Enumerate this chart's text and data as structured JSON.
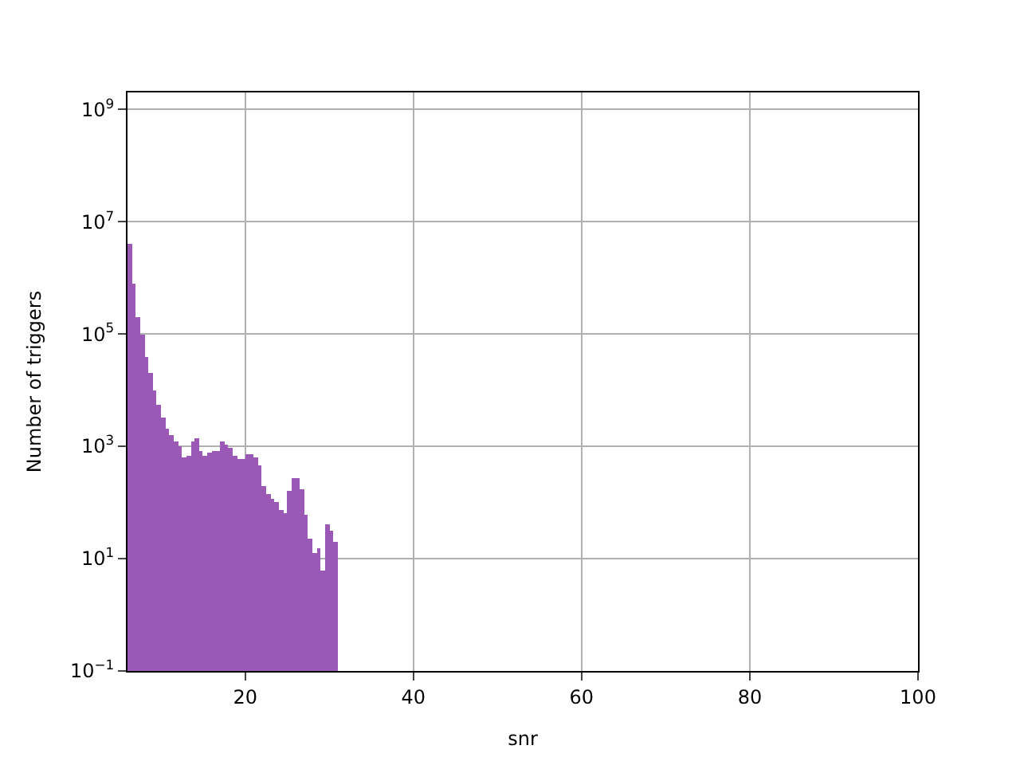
{
  "chart_data": {
    "type": "histogram",
    "xlabel": "snr",
    "ylabel": "Number of triggers",
    "color": "#9b59b6",
    "bins": [
      6.0,
      6.5,
      7.0,
      7.5,
      8.0,
      8.5,
      9.0,
      9.5,
      10.0,
      10.5,
      11.0,
      11.5,
      12.0,
      12.5,
      13.0,
      13.5,
      14.0,
      14.5,
      15.0,
      15.5,
      16.0,
      16.5,
      17.0,
      17.5,
      18.0,
      18.5,
      19.0,
      19.5,
      20.0,
      20.5,
      21.0,
      21.5,
      22.0,
      22.5,
      23.0,
      23.5,
      24.0,
      24.5,
      25.0,
      25.5,
      26.0,
      26.5,
      27.0,
      27.5,
      28.0,
      28.5,
      29.0,
      29.5,
      30.0,
      30.5,
      31.0
    ],
    "values": [
      4000000,
      800000,
      200000,
      100000,
      40000,
      20000,
      10000,
      5600,
      3200,
      2000,
      1600,
      1260,
      1000,
      630,
      700,
      1260,
      1400,
      800,
      680,
      760,
      850,
      850,
      1200,
      1100,
      950,
      700,
      600,
      600,
      720,
      720,
      630,
      460,
      195,
      140,
      115,
      100,
      74,
      66,
      160,
      280,
      270,
      175,
      60,
      23,
      13,
      15,
      6.3,
      42,
      32,
      20
    ],
    "xlim": [
      6,
      100
    ],
    "xticks": [
      20,
      40,
      60,
      80,
      100
    ],
    "ylim": [
      0.1,
      2000000000
    ],
    "yticks": [
      {
        "value": 0.1,
        "label": "10$^{−1}$"
      },
      {
        "value": 10,
        "label": "10$^{1}$"
      },
      {
        "value": 1000,
        "label": "10$^{3}$"
      },
      {
        "value": 100000,
        "label": "10$^{5}$"
      },
      {
        "value": 10000000,
        "label": "10$^{7}$"
      },
      {
        "value": 1000000000,
        "label": "10$^{9}$"
      }
    ],
    "log": "y",
    "grid": true
  }
}
